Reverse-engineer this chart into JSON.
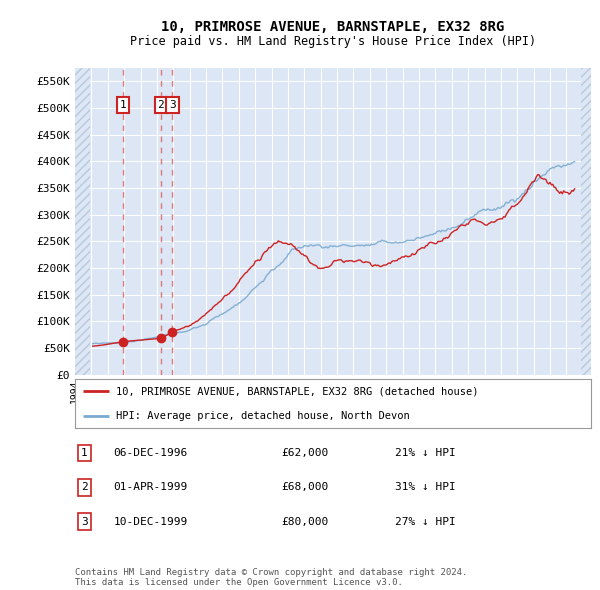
{
  "title": "10, PRIMROSE AVENUE, BARNSTAPLE, EX32 8RG",
  "subtitle": "Price paid vs. HM Land Registry's House Price Index (HPI)",
  "hpi_label": "HPI: Average price, detached house, North Devon",
  "property_label": "10, PRIMROSE AVENUE, BARNSTAPLE, EX32 8RG (detached house)",
  "ylabel_ticks": [
    "£0",
    "£50K",
    "£100K",
    "£150K",
    "£200K",
    "£250K",
    "£300K",
    "£350K",
    "£400K",
    "£450K",
    "£500K",
    "£550K"
  ],
  "ytick_vals": [
    0,
    50000,
    100000,
    150000,
    200000,
    250000,
    300000,
    350000,
    400000,
    450000,
    500000,
    550000
  ],
  "ylim": [
    0,
    575000
  ],
  "xlim_start": 1994.0,
  "xlim_end": 2025.5,
  "background_color": "#dce6f5",
  "hatch_color": "#b8c8dc",
  "grid_color": "#ffffff",
  "hpi_color": "#7aaad0",
  "property_color": "#cc2222",
  "dashed_line_color": "#dd6666",
  "transactions": [
    {
      "num": 1,
      "date": "06-DEC-1996",
      "year": 1996.92,
      "price": 62000,
      "pct": "21%",
      "dir": "↓"
    },
    {
      "num": 2,
      "date": "01-APR-1999",
      "year": 1999.25,
      "price": 68000,
      "pct": "31%",
      "dir": "↓"
    },
    {
      "num": 3,
      "date": "10-DEC-1999",
      "year": 1999.95,
      "price": 80000,
      "pct": "27%",
      "dir": "↓"
    }
  ],
  "footer_line1": "Contains HM Land Registry data © Crown copyright and database right 2024.",
  "footer_line2": "This data is licensed under the Open Government Licence v3.0."
}
